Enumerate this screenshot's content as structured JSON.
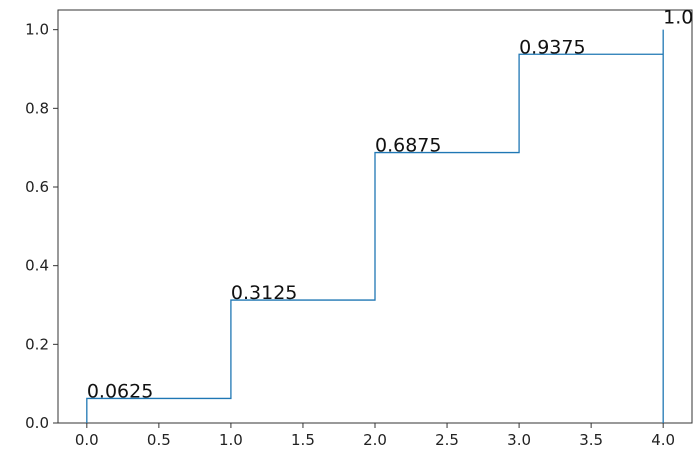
{
  "chart_data": {
    "type": "step",
    "x": [
      0,
      1,
      2,
      3,
      4
    ],
    "series": [
      {
        "color": "#1f77b4",
        "values": [
          0.0625,
          0.3125,
          0.6875,
          0.9375,
          1.0
        ],
        "value_labels": [
          "0.0625",
          "0.3125",
          "0.6875",
          "0.9375",
          "1.0"
        ]
      }
    ],
    "xlim": [
      -0.2,
      4.2
    ],
    "xticks": [
      {
        "value": 0,
        "label": "0.0"
      },
      0.5,
      {
        "value": 1,
        "label": "1.0"
      },
      1.5,
      {
        "value": 2,
        "label": "2.0"
      },
      2.5,
      {
        "value": 3,
        "label": "3.0"
      },
      3.5,
      {
        "value": 4,
        "label": "4.0"
      }
    ],
    "ylim": [
      0,
      1.05
    ],
    "yticks": [
      {
        "value": 0,
        "label": "0.0"
      },
      0.2,
      0.4,
      0.6,
      0.8,
      {
        "value": 1,
        "label": "1.0"
      }
    ]
  }
}
